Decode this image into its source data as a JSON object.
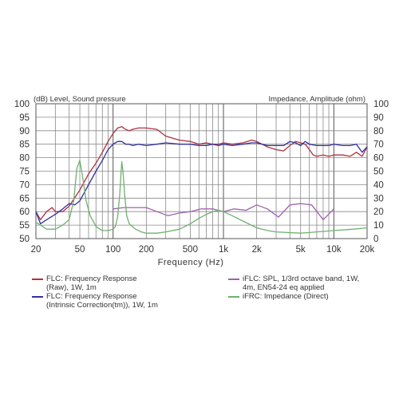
{
  "chart_data": {
    "type": "line",
    "left_axis": {
      "label": "(dB)  Level, Sound pressure",
      "ylim": [
        50,
        100
      ],
      "ticks": [
        50,
        55,
        60,
        65,
        70,
        75,
        80,
        85,
        90,
        95,
        100
      ]
    },
    "right_axis": {
      "label": "Impedance, Amplitude (ohm)",
      "ylim": [
        0,
        100
      ],
      "ticks": [
        0,
        10,
        20,
        30,
        40,
        50,
        60,
        70,
        80,
        90,
        100
      ]
    },
    "x_axis": {
      "label": "Frequency  (Hz)",
      "scale": "log",
      "xlim": [
        20,
        20000
      ],
      "tick_values": [
        20,
        50,
        100,
        200,
        500,
        1000,
        2000,
        5000,
        10000,
        20000
      ],
      "tick_labels": [
        "20",
        "50",
        "100",
        "200",
        "500",
        "1k",
        "2k",
        "5k",
        "10k",
        "20k"
      ]
    },
    "grid": true,
    "series": [
      {
        "name": "FLC: Frequency Response (Raw), 1W, 1m",
        "color": "#b03040",
        "axis": "left",
        "points": [
          [
            20,
            60
          ],
          [
            22,
            57
          ],
          [
            25,
            60
          ],
          [
            28,
            61.5
          ],
          [
            30,
            60
          ],
          [
            35,
            60
          ],
          [
            40,
            62
          ],
          [
            50,
            68
          ],
          [
            60,
            74
          ],
          [
            70,
            78
          ],
          [
            80,
            82
          ],
          [
            90,
            86
          ],
          [
            100,
            89
          ],
          [
            110,
            91
          ],
          [
            120,
            91.5
          ],
          [
            130,
            90.5
          ],
          [
            140,
            90
          ],
          [
            150,
            90.5
          ],
          [
            170,
            91
          ],
          [
            200,
            91
          ],
          [
            250,
            90.5
          ],
          [
            300,
            88
          ],
          [
            400,
            86.5
          ],
          [
            500,
            86
          ],
          [
            600,
            85
          ],
          [
            700,
            85.5
          ],
          [
            800,
            85
          ],
          [
            900,
            85
          ],
          [
            1000,
            85.5
          ],
          [
            1200,
            85
          ],
          [
            1500,
            85.5
          ],
          [
            1800,
            86.5
          ],
          [
            2000,
            86
          ],
          [
            2500,
            84
          ],
          [
            3000,
            83
          ],
          [
            3500,
            82.5
          ],
          [
            4000,
            84.5
          ],
          [
            4500,
            86
          ],
          [
            5000,
            85.5
          ],
          [
            5500,
            85
          ],
          [
            6000,
            83
          ],
          [
            6500,
            81
          ],
          [
            7000,
            80.5
          ],
          [
            8000,
            81
          ],
          [
            9000,
            80.5
          ],
          [
            10000,
            81
          ],
          [
            12000,
            81
          ],
          [
            14000,
            80.5
          ],
          [
            16000,
            82
          ],
          [
            18000,
            80.5
          ],
          [
            20000,
            84
          ]
        ]
      },
      {
        "name": "FLC: Frequency Response (Intrinsic Correction(tm)), 1W, 1m",
        "color": "#3030a0",
        "axis": "left",
        "points": [
          [
            20,
            60
          ],
          [
            22,
            55.5
          ],
          [
            25,
            57
          ],
          [
            30,
            59
          ],
          [
            35,
            61
          ],
          [
            40,
            63
          ],
          [
            45,
            62.5
          ],
          [
            50,
            64
          ],
          [
            60,
            70
          ],
          [
            70,
            75
          ],
          [
            80,
            79
          ],
          [
            90,
            83
          ],
          [
            100,
            85
          ],
          [
            110,
            86
          ],
          [
            120,
            86
          ],
          [
            130,
            85
          ],
          [
            140,
            85
          ],
          [
            150,
            84.5
          ],
          [
            170,
            85
          ],
          [
            200,
            84.5
          ],
          [
            250,
            85
          ],
          [
            300,
            85.5
          ],
          [
            400,
            85
          ],
          [
            500,
            85
          ],
          [
            600,
            84.5
          ],
          [
            700,
            84.5
          ],
          [
            800,
            85
          ],
          [
            900,
            84.5
          ],
          [
            1000,
            85
          ],
          [
            1200,
            84.5
          ],
          [
            1500,
            85
          ],
          [
            1800,
            85.5
          ],
          [
            2000,
            85.5
          ],
          [
            2500,
            84.5
          ],
          [
            3000,
            84.5
          ],
          [
            3500,
            84.5
          ],
          [
            4000,
            86
          ],
          [
            4500,
            85.5
          ],
          [
            5000,
            84.5
          ],
          [
            5500,
            86
          ],
          [
            6000,
            85
          ],
          [
            7000,
            84.5
          ],
          [
            8000,
            84.5
          ],
          [
            9000,
            84.5
          ],
          [
            10000,
            85
          ],
          [
            12000,
            84.5
          ],
          [
            14000,
            84.5
          ],
          [
            16000,
            85
          ],
          [
            18000,
            82
          ],
          [
            20000,
            84
          ]
        ]
      },
      {
        "name": "iFLC: SPL, 1/3rd octave band, 1W, 4m, EN54-24 eq applied",
        "color": "#a060b0",
        "axis": "left",
        "points": [
          [
            100,
            61
          ],
          [
            125,
            61.5
          ],
          [
            160,
            61.5
          ],
          [
            200,
            61.5
          ],
          [
            250,
            60
          ],
          [
            315,
            58.5
          ],
          [
            400,
            59.5
          ],
          [
            500,
            60
          ],
          [
            630,
            61
          ],
          [
            800,
            61
          ],
          [
            1000,
            60
          ],
          [
            1250,
            61
          ],
          [
            1600,
            60.5
          ],
          [
            2000,
            62.5
          ],
          [
            2500,
            61
          ],
          [
            3150,
            58
          ],
          [
            4000,
            62.5
          ],
          [
            5000,
            63
          ],
          [
            6300,
            62.5
          ],
          [
            8000,
            57
          ],
          [
            10000,
            61
          ]
        ]
      },
      {
        "name": "iFRC: Impedance (Direct)",
        "color": "#70b070",
        "axis": "right",
        "points": [
          [
            20,
            12
          ],
          [
            22,
            10
          ],
          [
            25,
            7
          ],
          [
            30,
            7
          ],
          [
            35,
            10
          ],
          [
            40,
            14
          ],
          [
            44,
            28
          ],
          [
            47,
            52
          ],
          [
            50,
            58
          ],
          [
            53,
            46
          ],
          [
            57,
            28
          ],
          [
            62,
            17
          ],
          [
            70,
            9
          ],
          [
            80,
            6
          ],
          [
            90,
            6
          ],
          [
            100,
            7
          ],
          [
            105,
            9
          ],
          [
            110,
            16
          ],
          [
            115,
            33
          ],
          [
            118,
            48
          ],
          [
            120,
            57
          ],
          [
            123,
            50
          ],
          [
            127,
            33
          ],
          [
            133,
            17
          ],
          [
            140,
            11
          ],
          [
            160,
            7
          ],
          [
            180,
            5
          ],
          [
            200,
            4
          ],
          [
            250,
            4
          ],
          [
            300,
            5
          ],
          [
            400,
            7
          ],
          [
            500,
            11
          ],
          [
            600,
            15
          ],
          [
            700,
            18
          ],
          [
            800,
            20
          ],
          [
            900,
            21
          ],
          [
            1000,
            20
          ],
          [
            1200,
            17
          ],
          [
            1500,
            13
          ],
          [
            2000,
            8
          ],
          [
            2500,
            6
          ],
          [
            3000,
            5
          ],
          [
            5000,
            4
          ],
          [
            7000,
            5
          ],
          [
            10000,
            6
          ],
          [
            15000,
            7
          ],
          [
            20000,
            8
          ]
        ]
      }
    ]
  },
  "legend": [
    {
      "line1": "FLC: Frequency Response",
      "line2": "(Raw), 1W, 1m",
      "color": "#b03040"
    },
    {
      "line1": "FLC: Frequency Response",
      "line2": "(Intrinsic Correction(tm)), 1W, 1m",
      "color": "#3030a0"
    },
    {
      "line1": "iFLC: SPL, 1/3rd octave band, 1W,",
      "line2": "4m, EN54-24 eq applied",
      "color": "#a060b0"
    },
    {
      "line1": "iFRC: Impedance (Direct)",
      "line2": "",
      "color": "#70b070"
    }
  ]
}
